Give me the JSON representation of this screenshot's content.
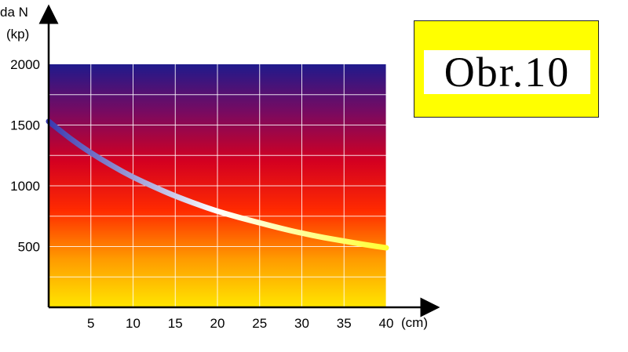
{
  "figure_label": "Obr.10",
  "chart_data": {
    "type": "line",
    "title": "",
    "xlabel": "(cm)",
    "ylabel_line1": "da N",
    "ylabel_line2": "(kp)",
    "xlim": [
      0,
      40
    ],
    "ylim": [
      0,
      2000
    ],
    "x_ticks": [
      5,
      10,
      15,
      20,
      25,
      30,
      35,
      40
    ],
    "y_ticks": [
      500,
      1000,
      1500,
      2000
    ],
    "grid": true,
    "background_gradient": [
      "#ffe600",
      "#ff9a00",
      "#ff2a00",
      "#d40020",
      "#7a0a60",
      "#1f1a8c"
    ],
    "curve_gradient": [
      "#3a3ab0",
      "#ffffff",
      "#ffff33"
    ],
    "series": [
      {
        "x": [
          0,
          2.5,
          5,
          7.5,
          10,
          12.5,
          15,
          17.5,
          20,
          22.5,
          25,
          27.5,
          30,
          32.5,
          35,
          37.5,
          40
        ],
        "values": [
          1530,
          1390,
          1270,
          1165,
          1070,
          990,
          915,
          850,
          790,
          740,
          695,
          650,
          610,
          575,
          545,
          515,
          490
        ]
      }
    ]
  }
}
